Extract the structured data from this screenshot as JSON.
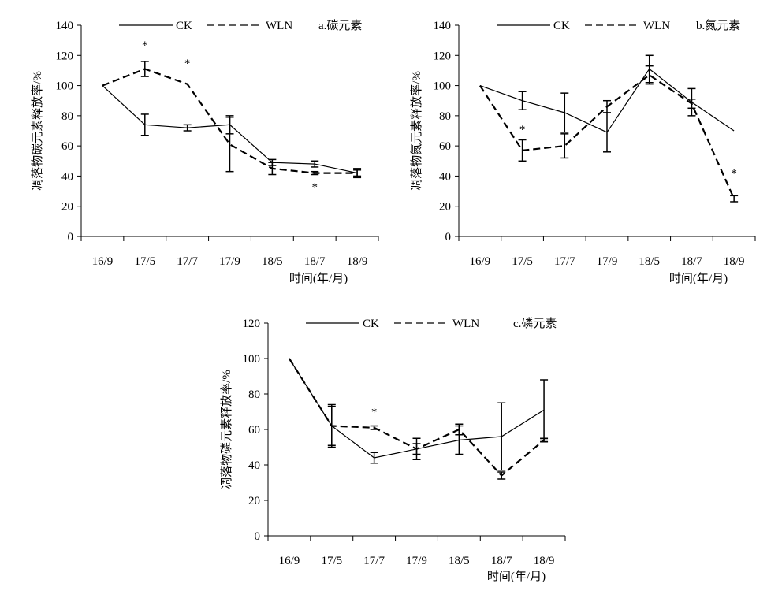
{
  "chart_data": [
    {
      "type": "line",
      "panel": "a.碳元素",
      "title": "a.碳元素",
      "xlabel": "时间(年/月)",
      "ylabel": "凋落物碳元素释放率/%",
      "ylim": [
        0,
        140
      ],
      "yticks": [
        "0",
        "20",
        "40",
        "60",
        "80",
        "100",
        "120",
        "140"
      ],
      "categories": [
        "16/9",
        "17/5",
        "17/7",
        "17/9",
        "18/5",
        "18/7",
        "18/9"
      ],
      "series": [
        {
          "name": "CK",
          "style": "solid",
          "values": [
            100,
            74,
            72,
            74,
            49,
            48,
            42
          ],
          "errors": [
            0,
            7,
            2,
            6,
            2,
            2,
            2
          ]
        },
        {
          "name": "WLN",
          "style": "dashed",
          "values": [
            100,
            111,
            101,
            61,
            45,
            42,
            42
          ],
          "errors": [
            0,
            5,
            0,
            18,
            4,
            1,
            3
          ]
        }
      ],
      "annotations": [
        {
          "label": "*",
          "category": "17/5",
          "y": 127
        },
        {
          "label": "*",
          "category": "17/7",
          "y": 115
        },
        {
          "label": "*",
          "category": "18/7",
          "y": 33
        }
      ],
      "grid": false,
      "legend": "top"
    },
    {
      "type": "line",
      "panel": "b.氮元素",
      "title": "b.氮元素",
      "xlabel": "时间(年/月)",
      "ylabel": "凋落物氮元素释放率/%",
      "ylim": [
        0,
        140
      ],
      "yticks": [
        "0",
        "20",
        "40",
        "60",
        "80",
        "100",
        "120",
        "140"
      ],
      "categories": [
        "16/9",
        "17/5",
        "17/7",
        "17/9",
        "18/5",
        "18/7",
        "18/9"
      ],
      "series": [
        {
          "name": "CK",
          "style": "solid",
          "values": [
            100,
            90,
            82,
            69,
            111,
            89,
            70
          ],
          "errors": [
            0,
            6,
            13,
            13,
            9,
            9,
            0
          ]
        },
        {
          "name": "WLN",
          "style": "dashed",
          "values": [
            100,
            57,
            60,
            86,
            107,
            88,
            25
          ],
          "errors": [
            0,
            7,
            8,
            4,
            6,
            3,
            2
          ]
        }
      ],
      "annotations": [
        {
          "label": "*",
          "category": "17/5",
          "y": 71
        },
        {
          "label": "*",
          "category": "18/9",
          "y": 42
        }
      ],
      "grid": false,
      "legend": "top"
    },
    {
      "type": "line",
      "panel": "c.磷元素",
      "title": "c.磷元素",
      "xlabel": "时间(年/月)",
      "ylabel": "凋落物磷元素释放率/%",
      "ylim": [
        0,
        120
      ],
      "yticks": [
        "0",
        "20",
        "40",
        "60",
        "80",
        "100",
        "120"
      ],
      "categories": [
        "16/9",
        "17/5",
        "17/7",
        "17/9",
        "18/5",
        "18/7",
        "18/9"
      ],
      "series": [
        {
          "name": "CK",
          "style": "solid",
          "values": [
            100,
            62,
            44,
            49,
            54,
            56,
            71
          ],
          "errors": [
            0,
            12,
            3,
            6,
            8,
            19,
            17
          ]
        },
        {
          "name": "WLN",
          "style": "dashed",
          "values": [
            100,
            62,
            61,
            49,
            60,
            34,
            54
          ],
          "errors": [
            0,
            11,
            1,
            3,
            3,
            2,
            1
          ]
        }
      ],
      "annotations": [
        {
          "label": "*",
          "category": "17/7",
          "y": 70
        }
      ],
      "grid": false,
      "legend": "top"
    }
  ]
}
